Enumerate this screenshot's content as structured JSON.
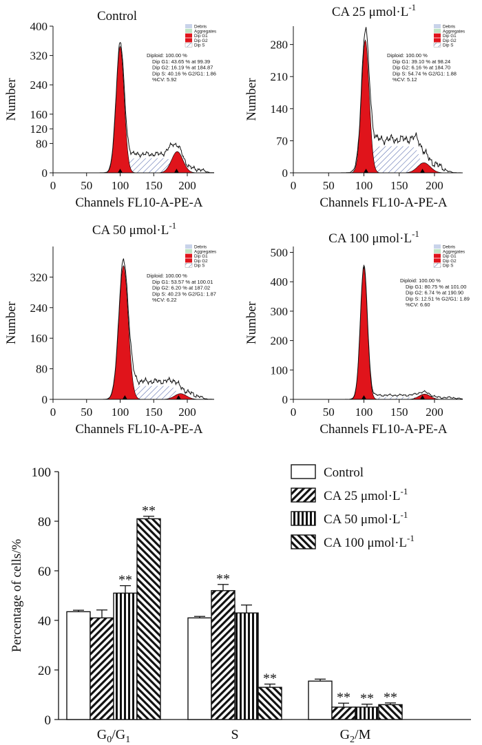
{
  "colors": {
    "fill_red": "#e0141b",
    "hatch_blue": "#4d63a8",
    "info_text": "#2e3f8f",
    "legend_debris": "#c9d3ea",
    "legend_aggregates": "#bfe3c4",
    "axis": "#111111"
  },
  "histogram_labels": {
    "x_label": "Channels FL10-A-PE-A",
    "y_label": "Number",
    "legend": [
      "Debris",
      "Aggregates",
      "Dip G1",
      "Dip G2",
      "Dip S"
    ]
  },
  "chart_data": [
    {
      "type": "area",
      "panel": "histogram",
      "title": "Control",
      "xlim": [
        0,
        240
      ],
      "xticks": [
        0,
        50,
        100,
        150,
        200
      ],
      "ylim": [
        0,
        400
      ],
      "yticks": [
        0,
        80,
        120,
        160,
        240,
        320,
        400
      ],
      "info": [
        "Diploid: 100.00 %",
        "Dip G1: 43.65 % at 99.39",
        "Dip G2: 16.19 % at 184.87",
        "Dip S: 40.16 %   G2/G1: 1.86",
        "%CV: 5.92"
      ],
      "g1": {
        "mean": 100,
        "sd": 6,
        "peak": 345
      },
      "g2": {
        "mean": 185,
        "sd": 8.5,
        "peak": 58
      },
      "s": {
        "from": 108,
        "to": 180,
        "level": 40
      },
      "noise": {
        "from": 90,
        "to": 225,
        "base": 18
      },
      "g1_marker": 100,
      "g2_marker": 184
    },
    {
      "type": "area",
      "panel": "histogram",
      "title": "CA 25 μmol·L",
      "title_sup": "-1",
      "xlim": [
        0,
        240
      ],
      "xticks": [
        0,
        50,
        100,
        150,
        200
      ],
      "ylim": [
        0,
        320
      ],
      "yticks": [
        0,
        70,
        140,
        210,
        280
      ],
      "info": [
        "Diploid: 100.00 %",
        "Dip G1: 39.10 % at 98.24",
        "Dip G2: 6.16 % at 184.70",
        "Dip S: 54.74 %   G2/G1: 1.88",
        "%CV: 5.12"
      ],
      "g1": {
        "mean": 102,
        "sd": 5.5,
        "peak": 290
      },
      "g2": {
        "mean": 185,
        "sd": 9,
        "peak": 22
      },
      "s": {
        "from": 108,
        "to": 180,
        "level": 58
      },
      "noise": {
        "from": 90,
        "to": 215,
        "base": 25
      },
      "g1_marker": 103,
      "g2_marker": 183
    },
    {
      "type": "area",
      "panel": "histogram",
      "title": "CA 50 μmol·L",
      "title_sup": "-1",
      "xlim": [
        0,
        240
      ],
      "xticks": [
        0,
        50,
        100,
        150,
        200
      ],
      "ylim": [
        0,
        400
      ],
      "yticks": [
        0,
        80,
        160,
        240,
        320
      ],
      "info": [
        "Diploid: 100.00 %",
        "Dip G1: 53.57 % at 100.01",
        "Dip G2: 6.20 % at 187.02",
        "Dip S: 40.23 %   G2/G1: 1.87",
        "%CV: 6.22"
      ],
      "g1": {
        "mean": 105,
        "sd": 7,
        "peak": 350
      },
      "g2": {
        "mean": 190,
        "sd": 9,
        "peak": 15
      },
      "s": {
        "from": 112,
        "to": 185,
        "level": 35
      },
      "noise": {
        "from": 95,
        "to": 220,
        "base": 20
      },
      "g1_marker": 107,
      "g2_marker": 187
    },
    {
      "type": "area",
      "panel": "histogram",
      "title": "CA 100 μmol·L",
      "title_sup": "-1",
      "xlim": [
        0,
        240
      ],
      "xticks": [
        0,
        50,
        100,
        150,
        200
      ],
      "ylim": [
        0,
        520
      ],
      "yticks": [
        0,
        100,
        200,
        300,
        400,
        500
      ],
      "info": [
        "Diploid: 100.00 %",
        "Dip G1: 80.75 % at 101.00",
        "Dip G2: 6.74 % at 190.90",
        "Dip S: 12.51 %   G2/G1: 1.89",
        "%CV: 6.60"
      ],
      "g1": {
        "mean": 100,
        "sd": 5,
        "peak": 450
      },
      "g2": {
        "mean": 186,
        "sd": 8,
        "peak": 18
      },
      "s": {
        "from": 108,
        "to": 180,
        "level": 8
      },
      "noise": {
        "from": 90,
        "to": 235,
        "base": 10
      },
      "g1_marker": 100,
      "g2_marker": 183
    },
    {
      "type": "bar",
      "panel": "summary",
      "ylabel": "Percentage of cells/%",
      "ylim": [
        0,
        100
      ],
      "yticks": [
        0,
        20,
        40,
        60,
        80,
        100
      ],
      "categories": [
        {
          "main": "G",
          "sub1": "0",
          "mid": "/G",
          "sub2": "1"
        },
        {
          "main": "S",
          "sub1": "",
          "mid": "",
          "sub2": ""
        },
        {
          "main": "G",
          "sub1": "2",
          "mid": "/M",
          "sub2": ""
        }
      ],
      "series": [
        {
          "name": "Control",
          "sup": "",
          "pattern": "none",
          "values": [
            43.5,
            41,
            15.5
          ],
          "errors": [
            0.6,
            0.6,
            0.8
          ],
          "sig": [
            "",
            "",
            ""
          ]
        },
        {
          "name": "CA 25 μmol·L",
          "sup": "-1",
          "pattern": "diag",
          "values": [
            41,
            52,
            5
          ],
          "errors": [
            3.2,
            2.5,
            1.6
          ],
          "sig": [
            "",
            "**",
            "**"
          ]
        },
        {
          "name": "CA 50 μmol·L",
          "sup": "-1",
          "pattern": "vert",
          "values": [
            51,
            43,
            5
          ],
          "errors": [
            3.0,
            3.2,
            1.2
          ],
          "sig": [
            "**",
            "",
            "**"
          ]
        },
        {
          "name": "CA 100 μmol·L",
          "sup": "-1",
          "pattern": "back",
          "values": [
            81,
            13,
            6
          ],
          "errors": [
            1.0,
            1.3,
            0.7
          ],
          "sig": [
            "**",
            "**",
            "**"
          ]
        }
      ]
    }
  ]
}
